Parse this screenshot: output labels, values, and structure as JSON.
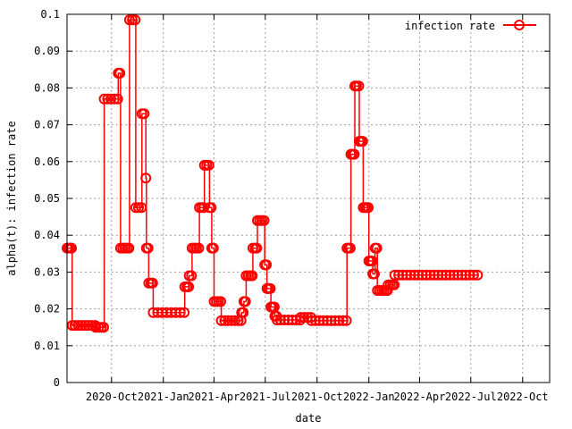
{
  "chart_data": {
    "type": "line",
    "xlabel": "date",
    "ylabel": "alpha(t): infection rate",
    "ylim": [
      0,
      0.1
    ],
    "y_ticks": [
      "0",
      "0.01",
      "0.02",
      "0.03",
      "0.04",
      "0.05",
      "0.06",
      "0.07",
      "0.08",
      "0.09",
      "0.1"
    ],
    "xlim": [
      "2020-07-14",
      "2022-11-18"
    ],
    "x_ticks": [
      "2020-Oct",
      "2021-Jan",
      "2021-Apr",
      "2021-Jul",
      "2021-Oct",
      "2022-Jan",
      "2022-Apr",
      "2022-Jul",
      "2022-Oct"
    ],
    "x_tick_dates": [
      "2020-10-01",
      "2021-01-01",
      "2021-04-01",
      "2021-07-01",
      "2021-10-01",
      "2022-01-01",
      "2022-04-01",
      "2022-07-01",
      "2022-10-01"
    ],
    "grid": true,
    "legend_position": "top-right",
    "series": [
      {
        "name": "infection rate",
        "color": "#ff0000",
        "marker": "circle",
        "points": [
          [
            "2020-07-14",
            0.0365
          ],
          [
            "2020-07-17",
            0.0365
          ],
          [
            "2020-07-20",
            0.0365
          ],
          [
            "2020-07-22",
            0.0365
          ],
          [
            "2020-07-23",
            0.0155
          ],
          [
            "2020-07-28",
            0.0155
          ],
          [
            "2020-08-03",
            0.0155
          ],
          [
            "2020-08-09",
            0.0155
          ],
          [
            "2020-08-15",
            0.0155
          ],
          [
            "2020-08-21",
            0.0155
          ],
          [
            "2020-08-27",
            0.0155
          ],
          [
            "2020-09-02",
            0.0155
          ],
          [
            "2020-09-03",
            0.015
          ],
          [
            "2020-09-08",
            0.015
          ],
          [
            "2020-09-13",
            0.015
          ],
          [
            "2020-09-17",
            0.015
          ],
          [
            "2020-09-18",
            0.077
          ],
          [
            "2020-09-24",
            0.077
          ],
          [
            "2020-09-30",
            0.077
          ],
          [
            "2020-10-06",
            0.077
          ],
          [
            "2020-10-12",
            0.077
          ],
          [
            "2020-10-13",
            0.084
          ],
          [
            "2020-10-16",
            0.084
          ],
          [
            "2020-10-17",
            0.0365
          ],
          [
            "2020-10-21",
            0.0365
          ],
          [
            "2020-10-25",
            0.0365
          ],
          [
            "2020-10-29",
            0.0365
          ],
          [
            "2020-11-01",
            0.0365
          ],
          [
            "2020-11-02",
            0.0985
          ],
          [
            "2020-11-07",
            0.0985
          ],
          [
            "2020-11-12",
            0.0985
          ],
          [
            "2020-11-13",
            0.0475
          ],
          [
            "2020-11-18",
            0.0475
          ],
          [
            "2020-11-23",
            0.0475
          ],
          [
            "2020-11-24",
            0.073
          ],
          [
            "2020-11-28",
            0.073
          ],
          [
            "2020-12-01",
            0.0555
          ],
          [
            "2020-12-02",
            0.0365
          ],
          [
            "2020-12-05",
            0.0365
          ],
          [
            "2020-12-06",
            0.027
          ],
          [
            "2020-12-10",
            0.027
          ],
          [
            "2020-12-13",
            0.027
          ],
          [
            "2020-12-14",
            0.019
          ],
          [
            "2020-12-22",
            0.019
          ],
          [
            "2020-12-30",
            0.019
          ],
          [
            "2021-01-07",
            0.019
          ],
          [
            "2021-01-15",
            0.019
          ],
          [
            "2021-01-23",
            0.019
          ],
          [
            "2021-01-31",
            0.019
          ],
          [
            "2021-02-07",
            0.019
          ],
          [
            "2021-02-08",
            0.026
          ],
          [
            "2021-02-12",
            0.026
          ],
          [
            "2021-02-15",
            0.026
          ],
          [
            "2021-02-16",
            0.029
          ],
          [
            "2021-02-20",
            0.029
          ],
          [
            "2021-02-21",
            0.0365
          ],
          [
            "2021-02-25",
            0.0365
          ],
          [
            "2021-03-01",
            0.0365
          ],
          [
            "2021-03-05",
            0.0365
          ],
          [
            "2021-03-06",
            0.0475
          ],
          [
            "2021-03-10",
            0.0475
          ],
          [
            "2021-03-14",
            0.0475
          ],
          [
            "2021-03-15",
            0.059
          ],
          [
            "2021-03-19",
            0.059
          ],
          [
            "2021-03-23",
            0.059
          ],
          [
            "2021-03-24",
            0.0475
          ],
          [
            "2021-03-27",
            0.0475
          ],
          [
            "2021-03-28",
            0.0365
          ],
          [
            "2021-03-31",
            0.0365
          ],
          [
            "2021-04-01",
            0.022
          ],
          [
            "2021-04-05",
            0.022
          ],
          [
            "2021-04-09",
            0.022
          ],
          [
            "2021-04-13",
            0.022
          ],
          [
            "2021-04-14",
            0.0168
          ],
          [
            "2021-04-20",
            0.0168
          ],
          [
            "2021-04-26",
            0.0168
          ],
          [
            "2021-05-02",
            0.0168
          ],
          [
            "2021-05-08",
            0.0168
          ],
          [
            "2021-05-14",
            0.0168
          ],
          [
            "2021-05-19",
            0.0168
          ],
          [
            "2021-05-20",
            0.019
          ],
          [
            "2021-05-23",
            0.019
          ],
          [
            "2021-05-24",
            0.022
          ],
          [
            "2021-05-27",
            0.022
          ],
          [
            "2021-05-28",
            0.029
          ],
          [
            "2021-06-01",
            0.029
          ],
          [
            "2021-06-05",
            0.029
          ],
          [
            "2021-06-08",
            0.029
          ],
          [
            "2021-06-09",
            0.0365
          ],
          [
            "2021-06-13",
            0.0365
          ],
          [
            "2021-06-16",
            0.0365
          ],
          [
            "2021-06-17",
            0.044
          ],
          [
            "2021-06-21",
            0.044
          ],
          [
            "2021-06-25",
            0.044
          ],
          [
            "2021-06-29",
            0.044
          ],
          [
            "2021-06-30",
            0.032
          ],
          [
            "2021-07-03",
            0.032
          ],
          [
            "2021-07-04",
            0.0255
          ],
          [
            "2021-07-07",
            0.0255
          ],
          [
            "2021-07-10",
            0.0255
          ],
          [
            "2021-07-11",
            0.0205
          ],
          [
            "2021-07-14",
            0.0205
          ],
          [
            "2021-07-17",
            0.0205
          ],
          [
            "2021-07-18",
            0.018
          ],
          [
            "2021-07-21",
            0.018
          ],
          [
            "2021-07-22",
            0.017
          ],
          [
            "2021-07-28",
            0.017
          ],
          [
            "2021-08-04",
            0.017
          ],
          [
            "2021-08-11",
            0.017
          ],
          [
            "2021-08-18",
            0.017
          ],
          [
            "2021-08-25",
            0.017
          ],
          [
            "2021-09-01",
            0.017
          ],
          [
            "2021-09-02",
            0.0177
          ],
          [
            "2021-09-08",
            0.0177
          ],
          [
            "2021-09-14",
            0.0177
          ],
          [
            "2021-09-20",
            0.0177
          ],
          [
            "2021-09-21",
            0.0168
          ],
          [
            "2021-09-28",
            0.0168
          ],
          [
            "2021-10-05",
            0.0168
          ],
          [
            "2021-10-12",
            0.0168
          ],
          [
            "2021-10-19",
            0.0168
          ],
          [
            "2021-10-26",
            0.0168
          ],
          [
            "2021-11-02",
            0.0168
          ],
          [
            "2021-11-09",
            0.0168
          ],
          [
            "2021-11-16",
            0.0168
          ],
          [
            "2021-11-22",
            0.0168
          ],
          [
            "2021-11-23",
            0.0365
          ],
          [
            "2021-11-26",
            0.0365
          ],
          [
            "2021-11-29",
            0.0365
          ],
          [
            "2021-11-30",
            0.062
          ],
          [
            "2021-12-03",
            0.062
          ],
          [
            "2021-12-06",
            0.062
          ],
          [
            "2021-12-07",
            0.0805
          ],
          [
            "2021-12-10",
            0.0805
          ],
          [
            "2021-12-14",
            0.0805
          ],
          [
            "2021-12-15",
            0.0655
          ],
          [
            "2021-12-18",
            0.0655
          ],
          [
            "2021-12-21",
            0.0655
          ],
          [
            "2021-12-22",
            0.0475
          ],
          [
            "2021-12-25",
            0.0475
          ],
          [
            "2021-12-28",
            0.0475
          ],
          [
            "2021-12-31",
            0.0475
          ],
          [
            "2022-01-01",
            0.033
          ],
          [
            "2022-01-04",
            0.033
          ],
          [
            "2022-01-07",
            0.033
          ],
          [
            "2022-01-08",
            0.0295
          ],
          [
            "2022-01-11",
            0.0295
          ],
          [
            "2022-01-12",
            0.0365
          ],
          [
            "2022-01-15",
            0.0365
          ],
          [
            "2022-01-16",
            0.025
          ],
          [
            "2022-01-20",
            0.025
          ],
          [
            "2022-01-24",
            0.025
          ],
          [
            "2022-01-28",
            0.025
          ],
          [
            "2022-02-01",
            0.025
          ],
          [
            "2022-02-03",
            0.025
          ],
          [
            "2022-02-04",
            0.0265
          ],
          [
            "2022-02-08",
            0.0265
          ],
          [
            "2022-02-12",
            0.0265
          ],
          [
            "2022-02-15",
            0.0265
          ],
          [
            "2022-02-16",
            0.0292
          ],
          [
            "2022-02-23",
            0.0292
          ],
          [
            "2022-03-02",
            0.0292
          ],
          [
            "2022-03-09",
            0.0292
          ],
          [
            "2022-03-16",
            0.0292
          ],
          [
            "2022-03-23",
            0.0292
          ],
          [
            "2022-03-30",
            0.0292
          ],
          [
            "2022-04-06",
            0.0292
          ],
          [
            "2022-04-13",
            0.0292
          ],
          [
            "2022-04-20",
            0.0292
          ],
          [
            "2022-04-27",
            0.0292
          ],
          [
            "2022-05-04",
            0.0292
          ],
          [
            "2022-05-11",
            0.0292
          ],
          [
            "2022-05-18",
            0.0292
          ],
          [
            "2022-05-25",
            0.0292
          ],
          [
            "2022-06-01",
            0.0292
          ],
          [
            "2022-06-08",
            0.0292
          ],
          [
            "2022-06-15",
            0.0292
          ],
          [
            "2022-06-22",
            0.0292
          ],
          [
            "2022-06-29",
            0.0292
          ],
          [
            "2022-07-06",
            0.0292
          ],
          [
            "2022-07-13",
            0.0292
          ]
        ]
      }
    ]
  }
}
